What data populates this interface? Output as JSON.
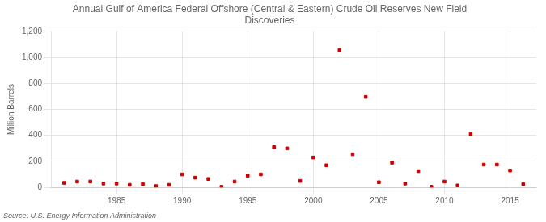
{
  "chart_data": {
    "type": "scatter",
    "title": "Annual Gulf of America Federal Offshore (Central & Eastern) Crude Oil Reserves New Field\nDiscoveries",
    "ylabel": "Million Barrels",
    "source": "Source: U.S. Energy Information Administration",
    "x": [
      1981,
      1982,
      1983,
      1984,
      1985,
      1986,
      1987,
      1988,
      1989,
      1990,
      1991,
      1992,
      1993,
      1994,
      1995,
      1996,
      1997,
      1998,
      1999,
      2000,
      2001,
      2002,
      2003,
      2004,
      2005,
      2006,
      2007,
      2008,
      2009,
      2010,
      2011,
      2012,
      2013,
      2014,
      2015,
      2016
    ],
    "values": [
      35,
      45,
      45,
      30,
      30,
      20,
      25,
      10,
      20,
      100,
      75,
      65,
      5,
      45,
      90,
      100,
      310,
      300,
      50,
      230,
      170,
      1055,
      255,
      695,
      40,
      190,
      30,
      125,
      5,
      45,
      15,
      410,
      175,
      175,
      130,
      25
    ],
    "color": "#cc0000",
    "marker": "square",
    "xlim": [
      1980,
      2017
    ],
    "xticks": [
      1985,
      1990,
      1995,
      2000,
      2005,
      2010,
      2015
    ],
    "ylim": [
      0,
      1200
    ],
    "yticks": [
      0,
      200,
      400,
      600,
      800,
      {
        "value": 1000,
        "label": "1,000"
      },
      {
        "value": 1200,
        "label": "1,200"
      }
    ],
    "grid": true
  }
}
